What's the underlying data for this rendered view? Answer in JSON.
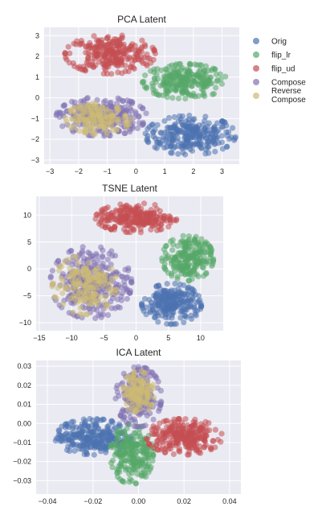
{
  "chart_data": [
    {
      "type": "scatter",
      "title": "PCA Latent",
      "xlabel": "",
      "ylabel": "",
      "xlim": [
        -3.2,
        3.6
      ],
      "ylim": [
        -3.2,
        3.4
      ],
      "xticks": [
        -3,
        -2,
        -1,
        0,
        1,
        2,
        3
      ],
      "yticks": [
        3,
        2,
        1,
        0,
        -1,
        -2,
        -3
      ],
      "grid": true,
      "series": [
        {
          "name": "Orig",
          "cx": 1.9,
          "cy": -1.8,
          "sx": 0.75,
          "sy": 0.45,
          "n": 260
        },
        {
          "name": "flip_lr",
          "cx": 1.7,
          "cy": 0.8,
          "sx": 0.7,
          "sy": 0.4,
          "n": 240
        },
        {
          "name": "flip_ud",
          "cx": -0.9,
          "cy": 2.1,
          "sx": 0.75,
          "sy": 0.45,
          "n": 260
        },
        {
          "name": "Compose",
          "cx": -1.2,
          "cy": -0.9,
          "sx": 0.75,
          "sy": 0.45,
          "n": 240
        },
        {
          "name": "Reverse Compose",
          "cx": -1.3,
          "cy": -1.0,
          "sx": 0.55,
          "sy": 0.35,
          "n": 140
        }
      ]
    },
    {
      "type": "scatter",
      "title": "TSNE Latent",
      "xlabel": "",
      "ylabel": "",
      "xlim": [
        -15.5,
        13.5
      ],
      "ylim": [
        -11.5,
        13.5
      ],
      "xticks": [
        -15,
        -10,
        -5,
        0,
        5,
        10
      ],
      "yticks": [
        10,
        5,
        0,
        -5,
        -10
      ],
      "grid": true,
      "series": [
        {
          "name": "Orig",
          "cx": 5.5,
          "cy": -6.5,
          "sx": 2.2,
          "sy": 1.8,
          "n": 240
        },
        {
          "name": "flip_lr",
          "cx": 8.0,
          "cy": 2.0,
          "sx": 1.9,
          "sy": 2.0,
          "n": 220
        },
        {
          "name": "flip_ud",
          "cx": 0.0,
          "cy": 9.5,
          "sx": 3.0,
          "sy": 1.3,
          "n": 240
        },
        {
          "name": "Compose",
          "cx": -7.0,
          "cy": -2.5,
          "sx": 3.0,
          "sy": 3.2,
          "n": 280
        },
        {
          "name": "Reverse Compose",
          "cx": -8.0,
          "cy": -3.0,
          "sx": 2.4,
          "sy": 2.6,
          "n": 150
        }
      ]
    },
    {
      "type": "scatter",
      "title": "ICA Latent",
      "xlabel": "",
      "ylabel": "",
      "xlim": [
        -0.045,
        0.045
      ],
      "ylim": [
        -0.037,
        0.033
      ],
      "xticks": [
        -0.04,
        -0.02,
        0.0,
        0.02,
        0.04
      ],
      "yticks": [
        0.03,
        0.02,
        0.01,
        0.0,
        -0.01,
        -0.02,
        -0.03
      ],
      "grid": true,
      "series": [
        {
          "name": "Orig",
          "cx": -0.02,
          "cy": -0.007,
          "sx": 0.008,
          "sy": 0.0045,
          "n": 260
        },
        {
          "name": "flip_lr",
          "cx": -0.003,
          "cy": -0.016,
          "sx": 0.0045,
          "sy": 0.0075,
          "n": 220
        },
        {
          "name": "flip_ud",
          "cx": 0.02,
          "cy": -0.007,
          "sx": 0.008,
          "sy": 0.0045,
          "n": 260
        },
        {
          "name": "Compose",
          "cx": 0.0,
          "cy": 0.014,
          "sx": 0.0048,
          "sy": 0.0075,
          "n": 200
        },
        {
          "name": "Reverse Compose",
          "cx": 0.0,
          "cy": 0.016,
          "sx": 0.0033,
          "sy": 0.0055,
          "n": 120
        }
      ]
    }
  ],
  "legend": {
    "position": "right of top chart",
    "items": [
      {
        "label": "Orig",
        "color": "#4c72b0"
      },
      {
        "label": "flip_lr",
        "color": "#55a868"
      },
      {
        "label": "flip_ud",
        "color": "#c44e52"
      },
      {
        "label": "Compose",
        "color": "#8172b2"
      },
      {
        "label_lines": [
          "Reverse",
          "Compose"
        ],
        "color": "#ccb974"
      }
    ]
  },
  "colors": {
    "Orig": "#4c72b0",
    "flip_lr": "#55a868",
    "flip_ud": "#c44e52",
    "Compose": "#8172b2",
    "Reverse Compose": "#ccb974",
    "axes_bg": "#eaeaf2",
    "grid": "#ffffff"
  }
}
